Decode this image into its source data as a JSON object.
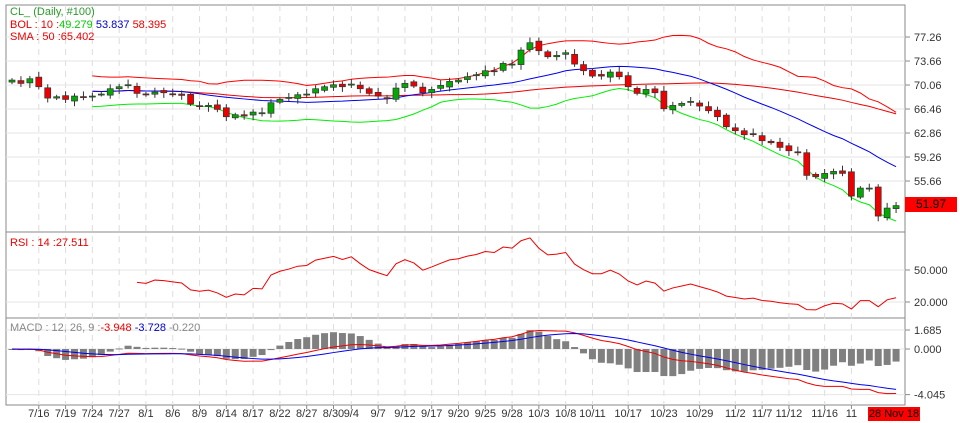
{
  "chart_data": {
    "type": "candlestick",
    "symbol_label": "CL_ (Daily, #100)",
    "bol": {
      "label": "BOL : 10 :",
      "lower": "49.279",
      "middle": "53.837",
      "upper": "58.395"
    },
    "sma": {
      "label": "SMA : 50 :",
      "value": "65.402"
    },
    "rsi": {
      "label": "RSI : 14 :",
      "value": "27.511",
      "ticks": [
        "50.000",
        "20.000"
      ],
      "tick_values": [
        50,
        20
      ]
    },
    "macd": {
      "label": "MACD : 12, 26, 9 :",
      "macd": "-3.948",
      "signal": "-3.728",
      "hist": "-0.220",
      "ticks": [
        "1.685",
        "0.000",
        "-4.045"
      ],
      "tick_values": [
        1.685,
        0,
        -4.045
      ]
    },
    "price_ticks": [
      "77.26",
      "73.66",
      "70.06",
      "66.46",
      "62.86",
      "59.26",
      "55.66"
    ],
    "price_tick_values": [
      77.26,
      73.66,
      70.06,
      66.46,
      62.86,
      59.26,
      55.66
    ],
    "last_price": "51.97",
    "last_date": "28 Nov 18",
    "x_labels": [
      "7/16",
      "7/19",
      "7/24",
      "7/27",
      "8/1",
      "8/6",
      "8/9",
      "8/14",
      "8/17",
      "8/22",
      "8/27",
      "8/30",
      "9/4",
      "9/7",
      "9/12",
      "9/17",
      "9/20",
      "9/25",
      "9/28",
      "10/3",
      "10/8",
      "10/11",
      "10/17",
      "10/23",
      "10/29",
      "11/2",
      "11/7",
      "11/12",
      "11/16",
      "11"
    ],
    "x_label_bar_index": [
      3,
      6,
      9,
      12,
      15,
      18,
      21,
      24,
      27,
      30,
      33,
      36,
      38,
      41,
      44,
      47,
      50,
      53,
      56,
      59,
      62,
      65,
      69,
      73,
      77,
      81,
      84,
      87,
      91,
      94
    ],
    "closes": [
      70.8,
      70.3,
      71.0,
      69.8,
      68.1,
      68.3,
      67.9,
      68.4,
      68.2,
      68.4,
      68.7,
      69.5,
      69.8,
      70.1,
      68.8,
      68.6,
      69.0,
      68.9,
      68.7,
      68.5,
      67.2,
      66.9,
      67.0,
      66.4,
      65.3,
      65.6,
      65.4,
      66.0,
      65.9,
      67.4,
      67.9,
      68.2,
      68.6,
      68.7,
      69.5,
      69.8,
      70.1,
      69.8,
      70.2,
      69.5,
      68.8,
      68.4,
      68.0,
      69.6,
      70.3,
      69.9,
      68.9,
      69.4,
      70.0,
      70.6,
      70.8,
      71.3,
      71.6,
      72.2,
      72.1,
      73.3,
      73.2,
      75.3,
      76.4,
      75.2,
      74.3,
      74.5,
      74.9,
      73.2,
      72.2,
      71.4,
      71.4,
      72.0,
      71.3,
      69.8,
      68.8,
      69.4,
      68.9,
      66.5,
      67.0,
      67.3,
      67.6,
      66.9,
      66.2,
      65.3,
      63.8,
      63.2,
      62.6,
      62.7,
      61.7,
      61.4,
      60.7,
      60.2,
      59.9,
      56.5,
      56.3,
      56.8,
      57.1,
      56.8,
      53.4,
      54.6,
      54.6,
      50.4,
      51.6,
      51.97
    ],
    "colors": {
      "up": "#00aa00",
      "down": "#ee0000",
      "bol_mid": "#0000ee",
      "bol_band": "#ff0000",
      "bol_low": "#00ee00",
      "sma": "#ee0000",
      "hist": "#808080"
    }
  }
}
